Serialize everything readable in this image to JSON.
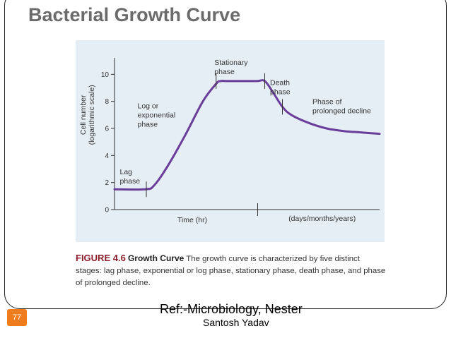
{
  "slide": {
    "title": "Bacterial Growth Curve",
    "page_number": "77",
    "reference": "Ref:-Microbiology, Nester",
    "author": "Santosh Yadav"
  },
  "caption": {
    "figure_id": "FIGURE 4.6",
    "figure_heading": "Growth Curve",
    "text": "The growth curve is characterized by five distinct stages: lag phase, exponential or log phase, stationary phase, death phase, and phase of prolonged decline."
  },
  "chart_data": {
    "type": "line",
    "ylabel_line1": "Cell number",
    "ylabel_line2": "(logarithmic scale)",
    "xlabel": "Time (hr)",
    "xlabel_secondary": "(days/months/years)",
    "yticks": [
      0,
      2,
      4,
      6,
      8,
      10
    ],
    "ylim": [
      0,
      12
    ],
    "xlim": [
      0,
      30
    ],
    "grid": false,
    "series": [
      {
        "x": [
          0,
          3.5,
          4.5,
          6,
          8,
          10,
          11.5,
          12,
          13,
          16,
          17,
          18,
          19,
          20,
          22,
          24,
          26,
          28,
          30
        ],
        "y": [
          1.5,
          1.5,
          1.8,
          3.2,
          5.5,
          8,
          9.3,
          9.5,
          9.5,
          9.5,
          9.5,
          8.6,
          7.6,
          7,
          6.4,
          6,
          5.8,
          5.7,
          5.6
        ],
        "color": "#6a3d9a"
      }
    ],
    "phase_labels": [
      {
        "lines": [
          "Lag",
          "phase"
        ],
        "x": 0.6,
        "y": 2.6
      },
      {
        "lines": [
          "Log or",
          "exponential",
          "phase"
        ],
        "x": 2.6,
        "y": 7.5
      },
      {
        "lines": [
          "Stationary",
          "phase"
        ],
        "x": 11.3,
        "y": 10.7
      },
      {
        "lines": [
          "Death",
          "phase"
        ],
        "x": 17.6,
        "y": 9.2
      },
      {
        "lines": [
          "Phase of",
          "prolonged decline"
        ],
        "x": 22.4,
        "y": 7.8
      }
    ],
    "phase_markers": [
      {
        "x": 3.6,
        "y": 1.5
      },
      {
        "x": 11.5,
        "y": 9.5
      },
      {
        "x": 17.0,
        "y": 9.5
      },
      {
        "x": 19.0,
        "y": 7.6
      }
    ],
    "x_axis_break": 16.2
  }
}
